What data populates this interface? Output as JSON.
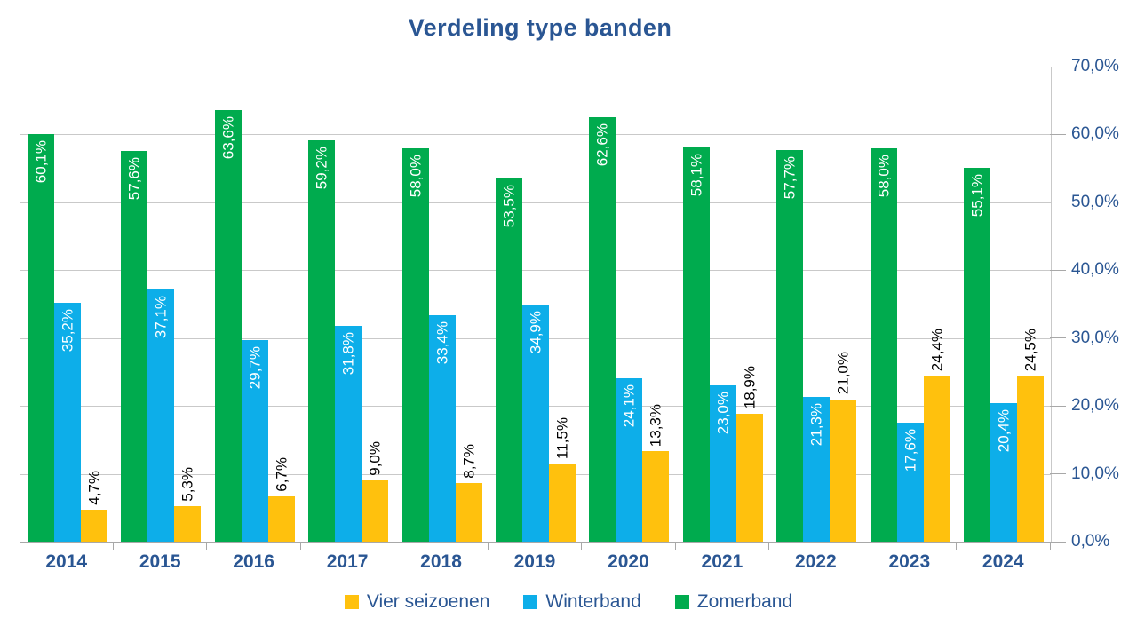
{
  "page": {
    "background": "#ffffff"
  },
  "chart_data": {
    "type": "bar",
    "title": "Verdeling type banden",
    "title_color": "#2a5693",
    "categories": [
      "2014",
      "2015",
      "2016",
      "2017",
      "2018",
      "2019",
      "2020",
      "2021",
      "2022",
      "2023",
      "2024"
    ],
    "series": [
      {
        "name": "Zomerband",
        "color": "#00ab4e",
        "label_style": "inside-white",
        "values": [
          60.1,
          57.6,
          63.6,
          59.2,
          58.0,
          53.5,
          62.6,
          58.1,
          57.7,
          58.0,
          55.1
        ],
        "labels": [
          "60,1%",
          "57,6%",
          "63,6%",
          "59,2%",
          "58,0%",
          "53,5%",
          "62,6%",
          "58,1%",
          "57,7%",
          "58,0%",
          "55,1%"
        ]
      },
      {
        "name": "Winterband",
        "color": "#0daee9",
        "label_style": "inside-white",
        "values": [
          35.2,
          37.1,
          29.7,
          31.8,
          33.4,
          34.9,
          24.1,
          23.0,
          21.3,
          17.6,
          20.4
        ],
        "labels": [
          "35,2%",
          "37,1%",
          "29,7%",
          "31,8%",
          "33,4%",
          "34,9%",
          "24,1%",
          "23,0%",
          "21,3%",
          "17,6%",
          "20,4%"
        ]
      },
      {
        "name": "Vier seizoenen",
        "color": "#ffc10d",
        "label_style": "above-black",
        "values": [
          4.7,
          5.3,
          6.7,
          9.0,
          8.7,
          11.5,
          13.3,
          18.9,
          21.0,
          24.4,
          24.5
        ],
        "labels": [
          "4,7%",
          "5,3%",
          "6,7%",
          "9,0%",
          "8,7%",
          "11,5%",
          "13,3%",
          "18,9%",
          "21,0%",
          "24,4%",
          "24,5%"
        ]
      }
    ],
    "bar_order": [
      "Zomerband",
      "Winterband",
      "Vier seizoenen"
    ],
    "y_axis": {
      "min": 0,
      "max": 70,
      "step": 10,
      "side": "right",
      "grid": true,
      "tick_labels": [
        "0,0%",
        "10,0%",
        "20,0%",
        "30,0%",
        "40,0%",
        "50,0%",
        "60,0%",
        "70,0%"
      ],
      "label_color": "#2a5693"
    },
    "x_axis": {
      "label_color": "#2a5693"
    },
    "legend": {
      "position": "bottom",
      "items": [
        {
          "label": "Vier seizoenen",
          "color": "#ffc10d"
        },
        {
          "label": "Winterband",
          "color": "#0daee9"
        },
        {
          "label": "Zomerband",
          "color": "#00ab4e"
        }
      ]
    }
  }
}
